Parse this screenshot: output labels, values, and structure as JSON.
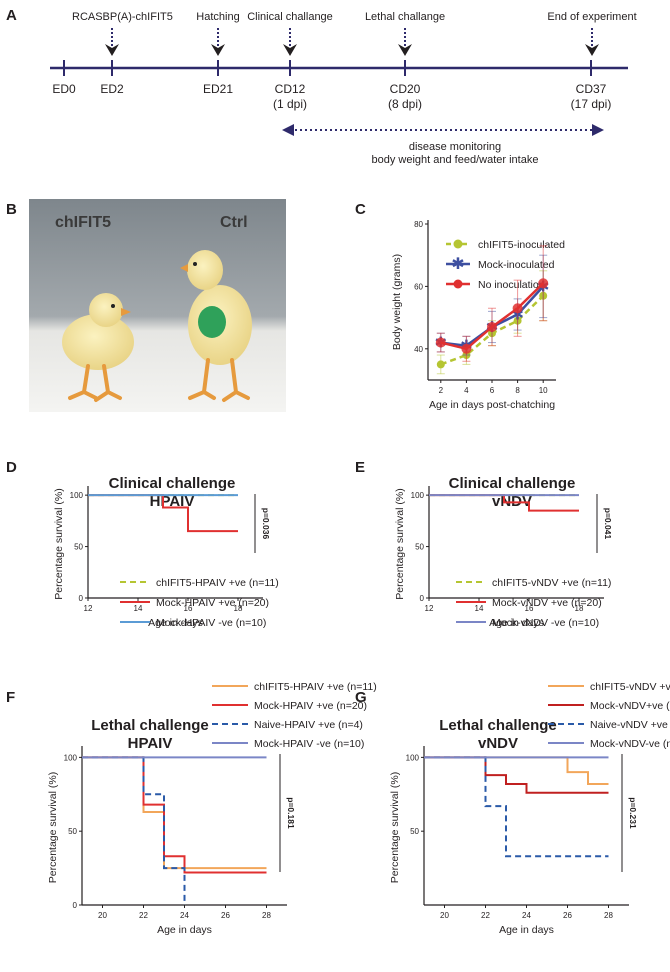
{
  "panels": {
    "A": "A",
    "B": "B",
    "C": "C",
    "D": "D",
    "E": "E",
    "F": "F",
    "G": "G"
  },
  "timeline": {
    "events": [
      {
        "label": "RCASBP(A)-chIFIT5",
        "day": 2
      },
      {
        "label": "Hatching",
        "day": 21
      },
      {
        "label": "Clinical challange",
        "day": 25
      },
      {
        "label": "Lethal challange",
        "day": 33
      },
      {
        "label": "End of experiment",
        "day": 50
      }
    ],
    "ticks": [
      {
        "day": 0,
        "line1": "ED0",
        "line2": ""
      },
      {
        "day": 4,
        "line1": "ED2",
        "line2": ""
      },
      {
        "day": 14,
        "line1": "ED21",
        "line2": ""
      },
      {
        "day": 21,
        "line1": "CD12",
        "line2": "(1 dpi)"
      },
      {
        "day": 31,
        "line1": "CD20",
        "line2": "(8 dpi)"
      },
      {
        "day": 47,
        "line1": "CD37",
        "line2": "(17 dpi)"
      }
    ],
    "monitoring_line1": "disease monitoring",
    "monitoring_line2": "body weight and feed/water intake",
    "colors": {
      "line": "#2e2a6b",
      "dotted": "#2e2a6b"
    }
  },
  "photo": {
    "left_label": "chIFIT5",
    "right_label": "Ctrl"
  },
  "chart_data": [
    {
      "id": "C",
      "type": "line",
      "title": "",
      "xlabel": "Age in days post-chatching",
      "ylabel": "Body weight (grams)",
      "xlim": [
        1,
        11
      ],
      "ylim": [
        30,
        80
      ],
      "xticks": [
        2,
        4,
        6,
        8,
        10
      ],
      "yticks": [
        40,
        60,
        80
      ],
      "x": [
        2,
        4,
        6,
        8,
        10
      ],
      "series": [
        {
          "name": "chIFIT5-inoculated",
          "values": [
            35,
            38,
            45,
            49,
            57
          ],
          "err": [
            3,
            3,
            4,
            4,
            8
          ],
          "color": "#b5c532",
          "dash": true,
          "marker": "circle"
        },
        {
          "name": "Mock-inoculated",
          "values": [
            42,
            41,
            47,
            51,
            60
          ],
          "err": [
            3,
            3,
            5,
            5,
            10
          ],
          "color": "#3d4fa0",
          "dash": false,
          "marker": "star"
        },
        {
          "name": "No inoculation",
          "values": [
            42,
            40,
            47,
            53,
            61
          ],
          "err": [
            3,
            4,
            6,
            9,
            12
          ],
          "color": "#e03030",
          "dash": false,
          "marker": "circle"
        }
      ]
    },
    {
      "id": "D",
      "type": "line",
      "title_line1": "Clinical challenge",
      "title_line2": "HPAIV",
      "xlabel": "Age in days",
      "ylabel": "Percentage survival (%)",
      "xlim": [
        12,
        19
      ],
      "ylim": [
        0,
        105
      ],
      "xticks": [
        12,
        14,
        16,
        18
      ],
      "yticks": [
        0,
        50,
        100
      ],
      "pvalue": "p=0.036",
      "series": [
        {
          "name": "chIFIT5-HPAIV +ve (n=11)",
          "color": "#b5c532",
          "dash": "6,4",
          "steps": [
            [
              12,
              100
            ],
            [
              18,
              100
            ]
          ]
        },
        {
          "name": "Mock-HPAIV +ve (n=20)",
          "color": "#e03030",
          "dash": "",
          "steps": [
            [
              12,
              100
            ],
            [
              15,
              100
            ],
            [
              15,
              88
            ],
            [
              16,
              88
            ],
            [
              16,
              65
            ],
            [
              18,
              65
            ]
          ]
        },
        {
          "name": "Mock-HPAIV -ve (n=10)",
          "color": "#5b9bd5",
          "dash": "",
          "steps": [
            [
              12,
              100
            ],
            [
              18,
              100
            ]
          ]
        }
      ]
    },
    {
      "id": "E",
      "type": "line",
      "title_line1": "Clinical challenge",
      "title_line2": "vNDV",
      "xlabel": "Age in days",
      "ylabel": "Percentage survival (%)",
      "xlim": [
        12,
        19
      ],
      "ylim": [
        0,
        105
      ],
      "xticks": [
        12,
        14,
        16,
        18
      ],
      "yticks": [
        0,
        50,
        100
      ],
      "pvalue": "p=0.041",
      "series": [
        {
          "name": "chIFIT5-vNDV +ve (n=11)",
          "color": "#b5c532",
          "dash": "6,4",
          "steps": [
            [
              12,
              100
            ],
            [
              18,
              100
            ]
          ]
        },
        {
          "name": "Mock-vNDV +ve (n=20)",
          "color": "#e03030",
          "dash": "",
          "steps": [
            [
              12,
              100
            ],
            [
              15,
              100
            ],
            [
              15,
              93
            ],
            [
              16,
              93
            ],
            [
              16,
              85
            ],
            [
              18,
              85
            ]
          ]
        },
        {
          "name": "Mock-vNDV -ve (n=10)",
          "color": "#7b86c6",
          "dash": "",
          "steps": [
            [
              12,
              100
            ],
            [
              18,
              100
            ]
          ]
        }
      ]
    },
    {
      "id": "F",
      "type": "line",
      "title_line1": "Lethal challenge",
      "title_line2": "HPAIV",
      "xlabel": "Age in days",
      "ylabel": "Percentage survival (%)",
      "xlim": [
        19,
        29
      ],
      "ylim": [
        0,
        105
      ],
      "xticks": [
        20,
        22,
        24,
        26,
        28
      ],
      "yticks": [
        0,
        50,
        100
      ],
      "pvalue": "p=0.181",
      "series": [
        {
          "name": "chIFIT5-HPAIV +ve (n=11)",
          "color": "#f2a65a",
          "dash": "",
          "steps": [
            [
              19,
              100
            ],
            [
              22,
              100
            ],
            [
              22,
              63
            ],
            [
              23,
              63
            ],
            [
              23,
              25
            ],
            [
              28,
              25
            ]
          ]
        },
        {
          "name": "Mock-HPAIV +ve (n=20)",
          "color": "#e03030",
          "dash": "",
          "steps": [
            [
              19,
              100
            ],
            [
              22,
              100
            ],
            [
              22,
              68
            ],
            [
              23,
              68
            ],
            [
              23,
              33
            ],
            [
              24,
              33
            ],
            [
              24,
              22
            ],
            [
              28,
              22
            ]
          ]
        },
        {
          "name": "Naive-HPAIV +ve (n=4)",
          "color": "#2a5aa8",
          "dash": "6,4",
          "steps": [
            [
              19,
              100
            ],
            [
              22,
              100
            ],
            [
              22,
              75
            ],
            [
              23,
              75
            ],
            [
              23,
              25
            ],
            [
              24,
              25
            ],
            [
              24,
              0
            ]
          ]
        },
        {
          "name": "Mock-HPAIV -ve (n=10)",
          "color": "#7b86c6",
          "dash": "",
          "steps": [
            [
              19,
              100
            ],
            [
              28,
              100
            ]
          ]
        }
      ]
    },
    {
      "id": "G",
      "type": "line",
      "title_line1": "Lethal challenge",
      "title_line2": "vNDV",
      "xlabel": "Age in days",
      "ylabel": "Percentage survival (%)",
      "xlim": [
        19,
        29
      ],
      "ylim": [
        0,
        105
      ],
      "xticks": [
        20,
        22,
        24,
        26,
        28
      ],
      "yticks": [
        50,
        100
      ],
      "pvalue": "p=0.231",
      "series": [
        {
          "name": "chIFIT5-vNDV +ve (n=11)",
          "color": "#f2a65a",
          "dash": "",
          "steps": [
            [
              19,
              100
            ],
            [
              26,
              100
            ],
            [
              26,
              90
            ],
            [
              27,
              90
            ],
            [
              27,
              82
            ],
            [
              28,
              82
            ]
          ]
        },
        {
          "name": "Mock-vNDV+ve (n=20)",
          "color": "#c02020",
          "dash": "",
          "steps": [
            [
              19,
              100
            ],
            [
              22,
              100
            ],
            [
              22,
              88
            ],
            [
              23,
              88
            ],
            [
              23,
              82
            ],
            [
              24,
              82
            ],
            [
              24,
              76
            ],
            [
              28,
              76
            ]
          ]
        },
        {
          "name": "Naive-vNDV +ve (n=3)",
          "color": "#2a5aa8",
          "dash": "6,4",
          "steps": [
            [
              19,
              100
            ],
            [
              22,
              100
            ],
            [
              22,
              67
            ],
            [
              23,
              67
            ],
            [
              23,
              33
            ],
            [
              28,
              33
            ]
          ]
        },
        {
          "name": "Mock-vNDV-ve (n=10)",
          "color": "#7b86c6",
          "dash": "",
          "steps": [
            [
              19,
              100
            ],
            [
              28,
              100
            ]
          ]
        }
      ]
    }
  ]
}
